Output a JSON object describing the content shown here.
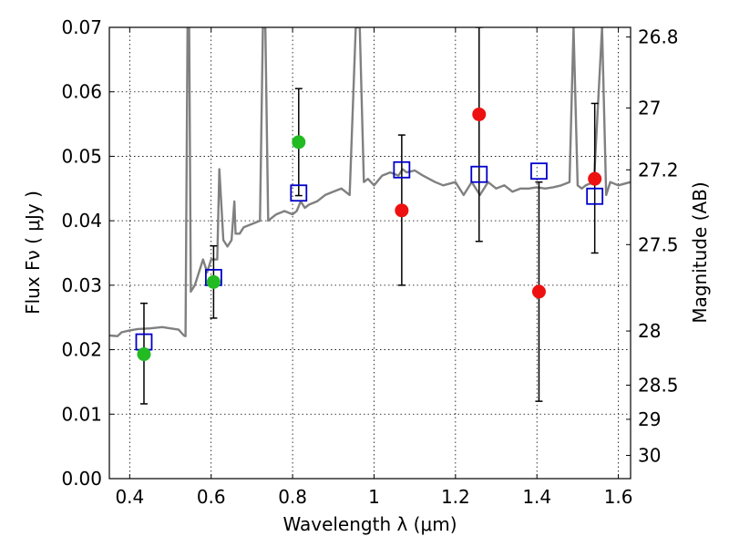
{
  "chart_data": {
    "type": "scatter",
    "xlabel": "Wavelength  λ (μm)",
    "ylabel": "Flux  Fν  ( μJy )",
    "y2label": "Magnitude (AB)",
    "xlim": [
      0.35,
      1.63
    ],
    "ylim": [
      0.0,
      0.07
    ],
    "grid": true,
    "x_ticks": [
      0.4,
      0.6,
      0.8,
      1.0,
      1.2,
      1.4,
      1.6
    ],
    "x_tick_labels": [
      "0.4",
      "0.6",
      "0.8",
      "1",
      "1.2",
      "1.4",
      "1.6"
    ],
    "y_ticks": [
      0.0,
      0.01,
      0.02,
      0.03,
      0.04,
      0.05,
      0.06,
      0.07
    ],
    "y_tick_labels": [
      "0.00",
      "0.01",
      "0.02",
      "0.03",
      "0.04",
      "0.05",
      "0.06",
      "0.07"
    ],
    "y2_ticks": [
      {
        "label": "26.8",
        "flux": 0.0685
      },
      {
        "label": "27",
        "flux": 0.0575
      },
      {
        "label": "27.2",
        "flux": 0.0479
      },
      {
        "label": "27.5",
        "flux": 0.0363
      },
      {
        "label": "28",
        "flux": 0.0229
      },
      {
        "label": "28.5",
        "flux": 0.0145
      },
      {
        "label": "29",
        "flux": 0.0092
      },
      {
        "label": "30",
        "flux": 0.0036
      }
    ],
    "model_spectrum": {
      "color": "#808080",
      "x": [
        0.35,
        0.37,
        0.38,
        0.4,
        0.42,
        0.45,
        0.48,
        0.5,
        0.52,
        0.533,
        0.537,
        0.542,
        0.546,
        0.55,
        0.56,
        0.57,
        0.58,
        0.59,
        0.6,
        0.615,
        0.62,
        0.63,
        0.64,
        0.65,
        0.657,
        0.66,
        0.67,
        0.68,
        0.7,
        0.72,
        0.727,
        0.733,
        0.74,
        0.76,
        0.78,
        0.8,
        0.81,
        0.82,
        0.83,
        0.84,
        0.86,
        0.88,
        0.9,
        0.92,
        0.94,
        0.955,
        0.965,
        0.975,
        0.985,
        1.0,
        1.02,
        1.04,
        1.06,
        1.07,
        1.08,
        1.1,
        1.12,
        1.15,
        1.17,
        1.2,
        1.22,
        1.24,
        1.26,
        1.28,
        1.3,
        1.32,
        1.34,
        1.36,
        1.38,
        1.4,
        1.42,
        1.44,
        1.46,
        1.48,
        1.49,
        1.5,
        1.51,
        1.52,
        1.54,
        1.56,
        1.57,
        1.58,
        1.6,
        1.63
      ],
      "y": [
        0.0222,
        0.0221,
        0.0227,
        0.023,
        0.0232,
        0.0233,
        0.0235,
        0.0233,
        0.0231,
        0.0222,
        0.0221,
        0.07,
        0.07,
        0.029,
        0.03,
        0.032,
        0.034,
        0.032,
        0.034,
        0.034,
        0.048,
        0.037,
        0.036,
        0.037,
        0.043,
        0.038,
        0.038,
        0.039,
        0.0395,
        0.04,
        0.07,
        0.07,
        0.04,
        0.041,
        0.0415,
        0.041,
        0.0415,
        0.043,
        0.042,
        0.0425,
        0.043,
        0.044,
        0.0445,
        0.045,
        0.044,
        0.07,
        0.07,
        0.046,
        0.0465,
        0.0455,
        0.047,
        0.0475,
        0.047,
        0.048,
        0.0475,
        0.0478,
        0.047,
        0.046,
        0.0455,
        0.046,
        0.044,
        0.046,
        0.044,
        0.046,
        0.045,
        0.0455,
        0.0445,
        0.045,
        0.045,
        0.0452,
        0.045,
        0.0452,
        0.0455,
        0.046,
        0.07,
        0.0455,
        0.045,
        0.0455,
        0.046,
        0.07,
        0.044,
        0.046,
        0.0455,
        0.046
      ]
    },
    "model_bands": {
      "color": "#0000cc",
      "marker": "open-square",
      "x": [
        0.435,
        0.606,
        0.815,
        1.068,
        1.258,
        1.405,
        1.542
      ],
      "y": [
        0.0212,
        0.0312,
        0.0443,
        0.0479,
        0.0472,
        0.0477,
        0.0438
      ]
    },
    "observed": {
      "x": [
        0.435,
        0.606,
        0.815,
        1.068,
        1.258,
        1.405,
        1.542
      ],
      "y": [
        0.0193,
        0.0305,
        0.0522,
        0.0416,
        0.0565,
        0.029,
        0.0465
      ],
      "err_low": [
        0.0116,
        0.0249,
        0.0439,
        0.03,
        0.0368,
        0.012,
        0.035
      ],
      "err_high": [
        0.0272,
        0.0361,
        0.0605,
        0.0533,
        0.07,
        0.046,
        0.0582
      ],
      "colors": [
        "#22bb22",
        "#22bb22",
        "#22bb22",
        "#ee1111",
        "#ee1111",
        "#ee1111",
        "#ee1111"
      ]
    }
  }
}
